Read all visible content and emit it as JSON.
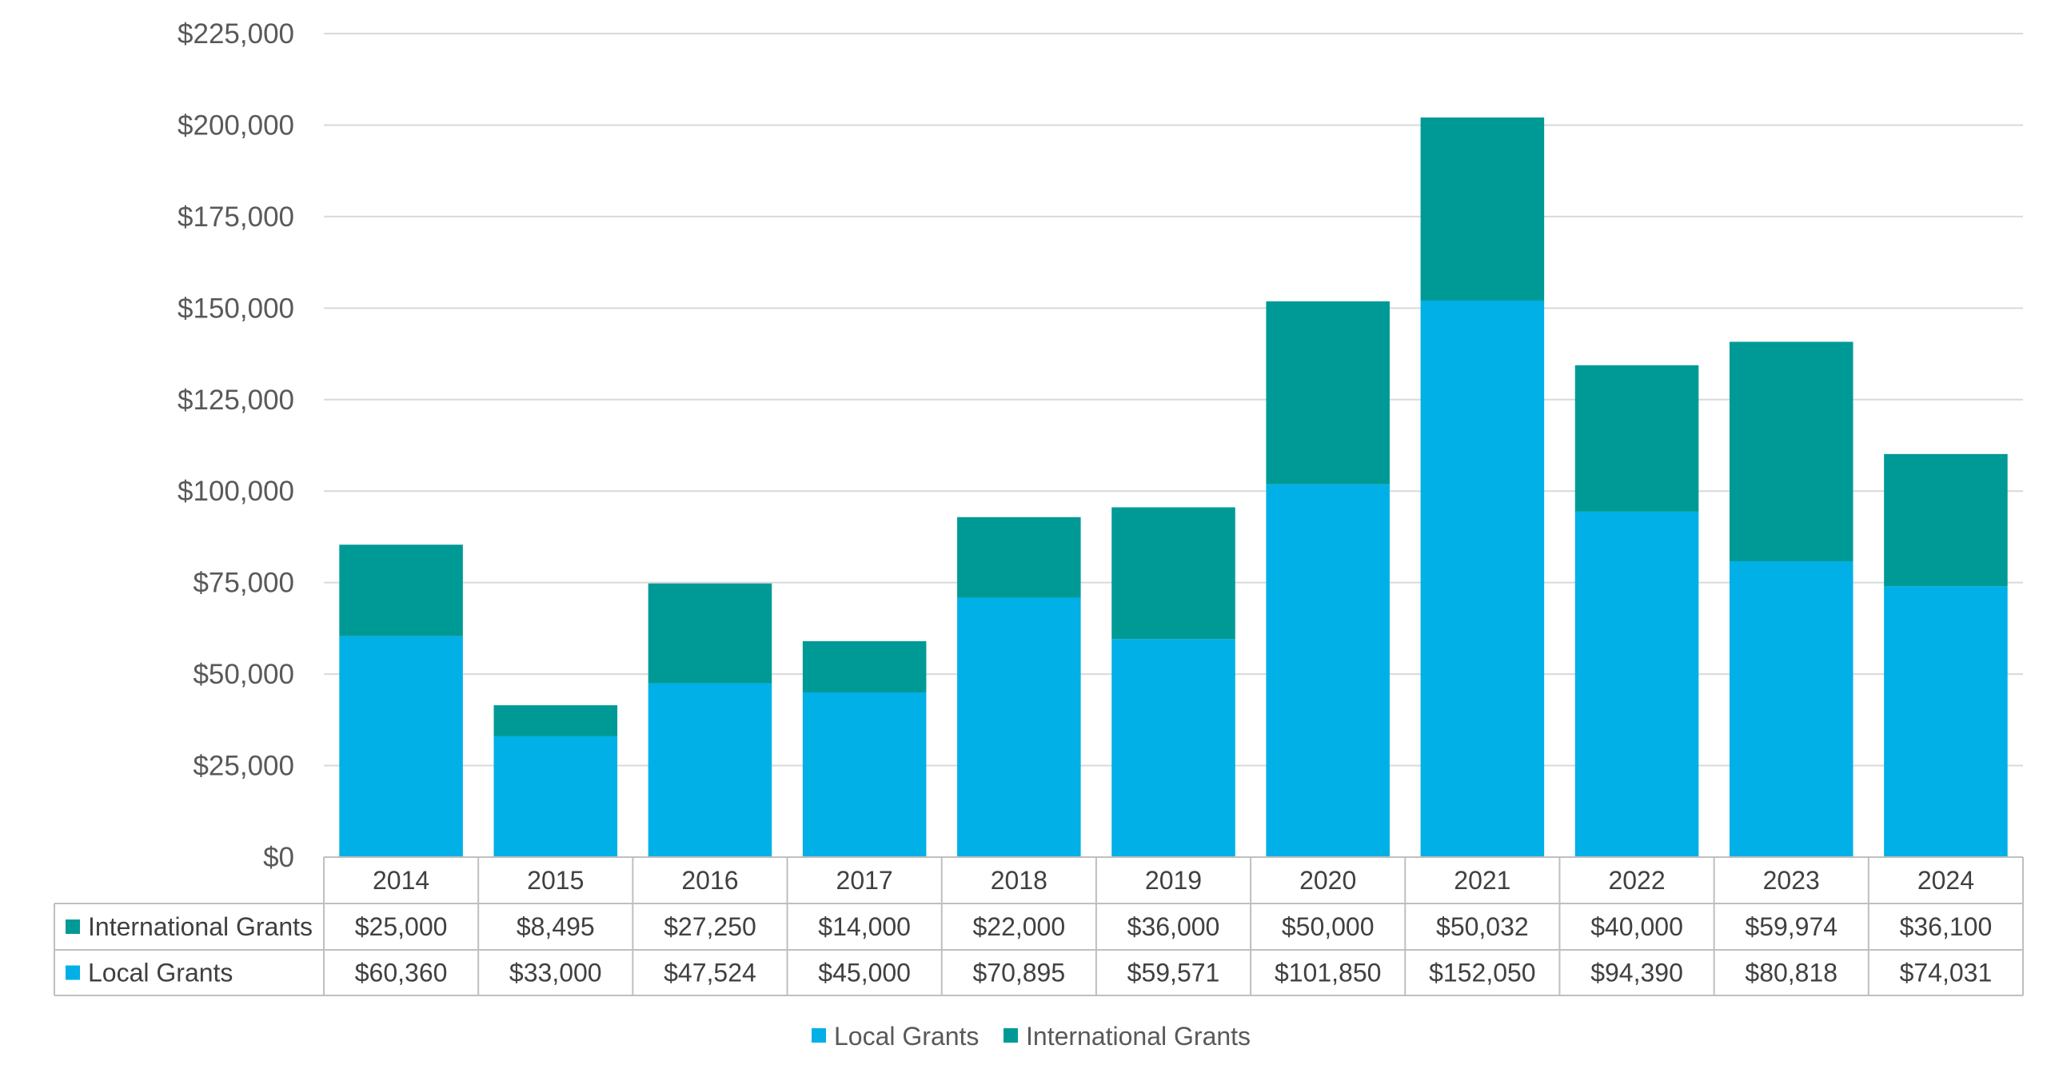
{
  "chart_data": {
    "type": "bar",
    "stacked": true,
    "categories": [
      "2014",
      "2015",
      "2016",
      "2017",
      "2018",
      "2019",
      "2020",
      "2021",
      "2022",
      "2023",
      "2024"
    ],
    "series": [
      {
        "name": "Local Grants",
        "color": "#00B0E6",
        "values": [
          60360,
          33000,
          47524,
          45000,
          70895,
          59571,
          101850,
          152050,
          94390,
          80818,
          74031
        ],
        "labels": [
          "$60,360",
          "$33,000",
          "$47,524",
          "$45,000",
          "$70,895",
          "$59,571",
          "$101,850",
          "$152,050",
          "$94,390",
          "$80,818",
          "$74,031"
        ]
      },
      {
        "name": "International Grants",
        "color": "#009A96",
        "values": [
          25000,
          8495,
          27250,
          14000,
          22000,
          36000,
          50000,
          50032,
          40000,
          59974,
          36100
        ],
        "labels": [
          "$25,000",
          "$8,495",
          "$27,250",
          "$14,000",
          "$22,000",
          "$36,000",
          "$50,000",
          "$50,032",
          "$40,000",
          "$59,974",
          "$36,100"
        ]
      }
    ],
    "ylim": [
      0,
      225000
    ],
    "yticks": [
      "$0",
      "$25,000",
      "$50,000",
      "$75,000",
      "$100,000",
      "$125,000",
      "$150,000",
      "$175,000",
      "$200,000",
      "$225,000"
    ],
    "grid": true,
    "data_table": true,
    "legend": "bottom",
    "title": "",
    "xlabel": "",
    "ylabel": ""
  }
}
